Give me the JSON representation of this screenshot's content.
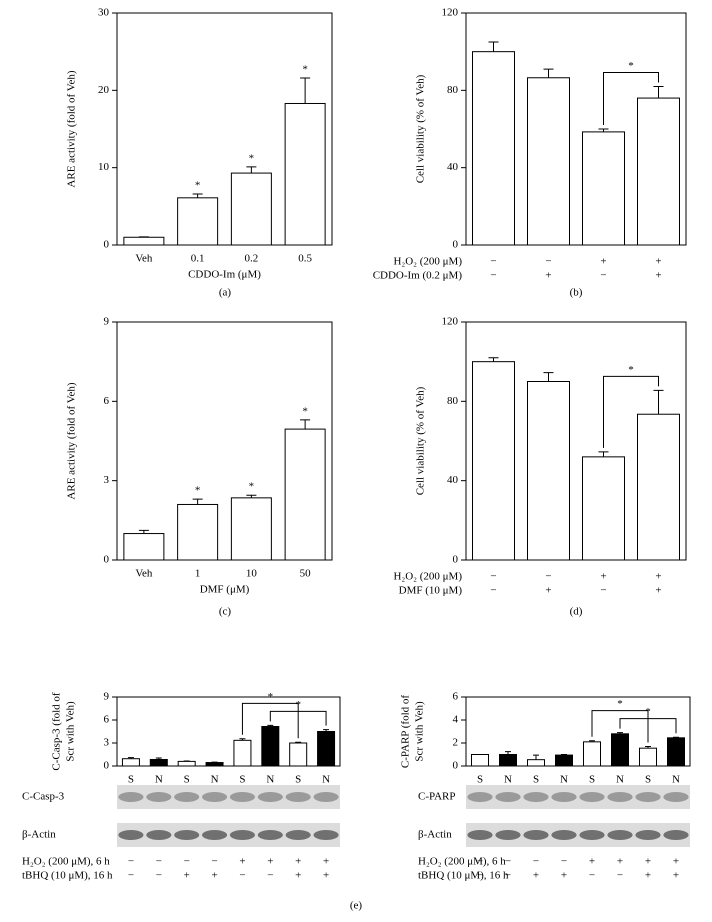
{
  "chart_data": [
    {
      "type": "bar",
      "panel_label": "(a)",
      "y_label": [
        "ARE activity (fold of Veh)"
      ],
      "x_label": "CDDO-Im (μM)",
      "categories": [
        "Veh",
        "0.1",
        "0.2",
        "0.5"
      ],
      "values": [
        1,
        6.1,
        9.3,
        18.3
      ],
      "errors": [
        0.05,
        0.5,
        0.8,
        3.3
      ],
      "color": "#ffffff",
      "star_labels": [
        null,
        "*",
        "*",
        "*"
      ],
      "ylim": [
        0,
        30
      ],
      "yticks": [
        0,
        10,
        20,
        30
      ]
    },
    {
      "type": "bar",
      "panel_label": "(b)",
      "y_label": [
        "Cell viability (% of Veh)"
      ],
      "values": [
        100,
        86.5,
        58.5,
        76
      ],
      "errors": [
        5,
        4.5,
        1.5,
        6
      ],
      "color": "#ffffff",
      "conditions": [
        {
          "label": "H₂O₂ (200 μM)",
          "signs": [
            "−",
            "−",
            "+",
            "+"
          ]
        },
        {
          "label": "CDDO-Im (0.2 μM)",
          "signs": [
            "−",
            "+",
            "−",
            "+"
          ]
        }
      ],
      "brackets": [
        {
          "between": [
            2,
            3
          ],
          "label": "*"
        }
      ],
      "ylim": [
        0,
        120
      ],
      "yticks": [
        0,
        40,
        80,
        120
      ]
    },
    {
      "type": "bar",
      "panel_label": "(c)",
      "y_label": [
        "ARE activity (fold of Veh)"
      ],
      "x_label": "DMF (μM)",
      "categories": [
        "Veh",
        "1",
        "10",
        "50"
      ],
      "values": [
        1,
        2.1,
        2.35,
        4.95
      ],
      "errors": [
        0.12,
        0.2,
        0.1,
        0.35
      ],
      "color": "#ffffff",
      "star_labels": [
        null,
        "*",
        "*",
        "*"
      ],
      "ylim": [
        0,
        9
      ],
      "yticks": [
        0,
        3,
        6,
        9
      ]
    },
    {
      "type": "bar",
      "panel_label": "(d)",
      "y_label": [
        "Cell viability (% of Veh)"
      ],
      "values": [
        100,
        90,
        52,
        73.5
      ],
      "errors": [
        2,
        4.5,
        2.5,
        12
      ],
      "color": "#ffffff",
      "conditions": [
        {
          "label": "H₂O₂ (200 μM)",
          "signs": [
            "−",
            "−",
            "+",
            "+"
          ]
        },
        {
          "label": "DMF (10 μM)",
          "signs": [
            "−",
            "+",
            "−",
            "+"
          ]
        }
      ],
      "brackets": [
        {
          "between": [
            2,
            3
          ],
          "label": "*"
        }
      ],
      "ylim": [
        0,
        120
      ],
      "yticks": [
        0,
        40,
        80,
        120
      ]
    },
    {
      "type": "bar",
      "panel_label": "(e)",
      "y_label": [
        "C-Casp-3 (fold of",
        "Scr with Veh)"
      ],
      "categories": [
        "S",
        "N",
        "S",
        "N",
        "S",
        "N",
        "S",
        "N"
      ],
      "values": [
        0.95,
        0.85,
        0.6,
        0.45,
        3.35,
        5.15,
        3.0,
        4.5
      ],
      "errors": [
        0.15,
        0.2,
        0.05,
        0.05,
        0.2,
        0.15,
        0.1,
        0.25
      ],
      "colors": [
        "#ffffff",
        "#000000",
        "#ffffff",
        "#000000",
        "#ffffff",
        "#000000",
        "#ffffff",
        "#000000"
      ],
      "brackets": [
        {
          "between": [
            4,
            6
          ],
          "label": "*"
        },
        {
          "between": [
            5,
            7
          ],
          "label": "*"
        }
      ],
      "blots": [
        "C-Casp-3",
        "β-Actin"
      ],
      "conditions": [
        {
          "label": "H₂O₂ (200 μM), 6 h",
          "signs": [
            "−",
            "−",
            "−",
            "−",
            "+",
            "+",
            "+",
            "+"
          ]
        },
        {
          "label": "tBHQ (10 μM), 16 h",
          "signs": [
            "−",
            "−",
            "+",
            "+",
            "−",
            "−",
            "+",
            "+"
          ]
        }
      ],
      "ylim": [
        0,
        9
      ],
      "yticks": [
        0,
        3,
        6,
        9
      ]
    },
    {
      "type": "bar",
      "y_label": [
        "C-PARP (fold of",
        "Scr with Veh)"
      ],
      "categories": [
        "S",
        "N",
        "S",
        "N",
        "S",
        "N",
        "S",
        "N"
      ],
      "values": [
        1.0,
        1.0,
        0.55,
        0.95,
        2.1,
        2.8,
        1.55,
        2.45
      ],
      "errors": [
        0,
        0.25,
        0.4,
        0.05,
        0.1,
        0.1,
        0.15,
        0.05
      ],
      "colors": [
        "#ffffff",
        "#000000",
        "#ffffff",
        "#000000",
        "#ffffff",
        "#000000",
        "#ffffff",
        "#000000"
      ],
      "brackets": [
        {
          "between": [
            4,
            6
          ],
          "label": "*"
        },
        {
          "between": [
            5,
            7
          ],
          "label": "*"
        }
      ],
      "blots": [
        "C-PARP",
        "β-Actin"
      ],
      "conditions": [
        {
          "label": "H₂O₂ (200 μM), 6 h",
          "signs": [
            "−",
            "−",
            "−",
            "−",
            "+",
            "+",
            "+",
            "+"
          ]
        },
        {
          "label": "tBHQ (10 μM), 16 h",
          "signs": [
            "−",
            "−",
            "+",
            "+",
            "−",
            "−",
            "+",
            "+"
          ]
        }
      ],
      "ylim": [
        0,
        6
      ],
      "yticks": [
        0,
        2,
        4,
        6
      ]
    }
  ]
}
